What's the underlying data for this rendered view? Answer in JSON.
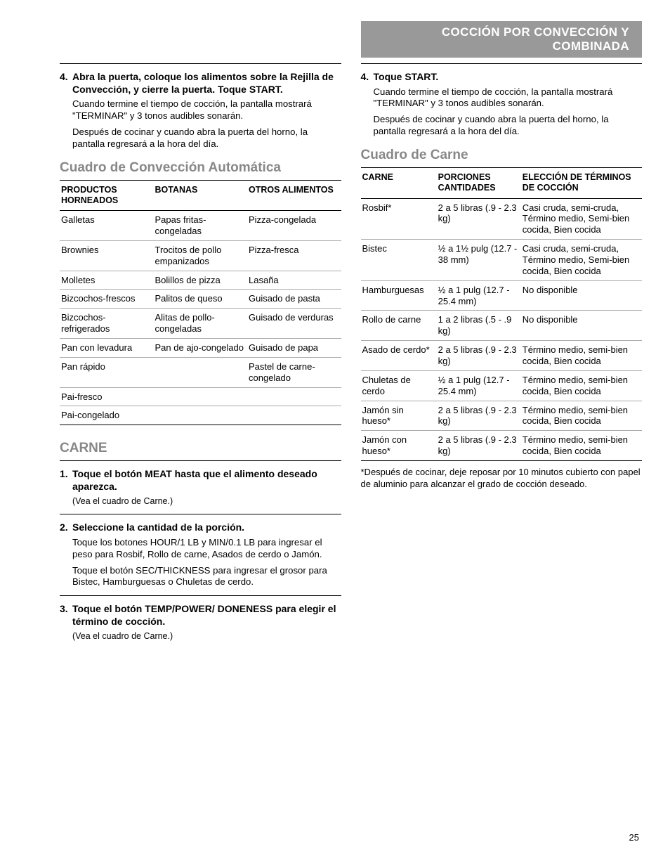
{
  "header": {
    "title": "COCCIÓN POR CONVECCIÓN Y COMBINADA"
  },
  "page_number": "25",
  "left": {
    "step4": {
      "num": "4.",
      "title": "Abra la puerta, coloque los alimentos sobre la Rejilla de Convección, y cierre la puerta. Toque START.",
      "p1": "Cuando termine el tiempo de cocción, la pantalla mostrará \"TERMINAR\" y 3 tonos audibles sonarán.",
      "p2": "Después de cocinar y cuando abra la puerta del horno, la pantalla regresará a la hora del día."
    },
    "conv_title": "Cuadro de Convección Automática",
    "conv_table": {
      "headers": [
        "PRODUCTOS HORNEADOS",
        "BOTANAS",
        "OTROS ALIMENTOS"
      ],
      "rows": [
        [
          "Galletas",
          "Papas fritas-congeladas",
          "Pizza-congelada"
        ],
        [
          "Brownies",
          "Trocitos de pollo empanizados",
          "Pizza-fresca"
        ],
        [
          "Molletes",
          "Bolillos de pizza",
          "Lasaña"
        ],
        [
          "Bizcochos-frescos",
          "Palitos de queso",
          "Guisado de pasta"
        ],
        [
          "Bizcochos-refrigerados",
          "Alitas de pollo-congeladas",
          "Guisado de verduras"
        ],
        [
          "Pan con levadura",
          "Pan de ajo-congelado",
          "Guisado de papa"
        ],
        [
          "Pan rápido",
          "",
          "Pastel de carne-congelado"
        ],
        [
          "Pai-fresco",
          "",
          ""
        ],
        [
          "Pai-congelado",
          "",
          ""
        ]
      ]
    },
    "carne_title": "CARNE",
    "carne_steps": {
      "s1": {
        "num": "1.",
        "title": "Toque el botón MEAT hasta que el alimento deseado aparezca.",
        "p1": "(Vea el cuadro de Carne.)"
      },
      "s2": {
        "num": "2.",
        "title": "Seleccione la cantidad de la porción.",
        "p1": "Toque los botones HOUR/1 LB y MIN/0.1 LB para ingresar el peso para Rosbif, Rollo de carne, Asados de cerdo o Jamón.",
        "p2": "Toque el botón SEC/THICKNESS para ingresar el grosor para Bistec, Hamburguesas o Chuletas de cerdo."
      },
      "s3": {
        "num": "3.",
        "title": "Toque el botón TEMP/POWER/ DONENESS para elegir el término de cocción.",
        "p1": "(Vea el cuadro de Carne.)"
      }
    }
  },
  "right": {
    "step4": {
      "num": "4.",
      "title": "Toque START.",
      "p1": "Cuando termine el tiempo de cocción, la pantalla mostrará \"TERMINAR\" y 3 tonos audibles sonarán.",
      "p2": "Después de cocinar y cuando abra la puerta del horno, la pantalla regresará a la hora del día."
    },
    "carne_title": "Cuadro de Carne",
    "carne_table": {
      "headers": [
        "CARNE",
        "PORCIONES CANTIDADES",
        "ELECCIÓN DE TÉRMINOS DE COCCIÓN"
      ],
      "rows": [
        [
          "Rosbif*",
          "2 a 5 libras (.9 - 2.3 kg)",
          "Casi cruda, semi-cruda, Término medio, Semi-bien cocida, Bien cocida"
        ],
        [
          "Bistec",
          "½ a 1½ pulg (12.7 - 38 mm)",
          "Casi cruda, semi-cruda, Término medio, Semi-bien cocida, Bien cocida"
        ],
        [
          "Hamburguesas",
          "½ a 1 pulg (12.7 - 25.4 mm)",
          "No disponible"
        ],
        [
          "Rollo de carne",
          "1 a 2 libras (.5 - .9 kg)",
          "No disponible"
        ],
        [
          "Asado de cerdo*",
          "2 a 5 libras (.9 - 2.3 kg)",
          "Término medio, semi-bien cocida, Bien cocida"
        ],
        [
          "Chuletas de cerdo",
          "½ a 1 pulg (12.7 - 25.4 mm)",
          "Término medio, semi-bien cocida, Bien cocida"
        ],
        [
          "Jamón sin hueso*",
          "2 a 5 libras (.9 - 2.3 kg)",
          "Término medio, semi-bien cocida, Bien cocida"
        ],
        [
          "Jamón con hueso*",
          "2 a 5 libras (.9 - 2.3 kg)",
          "Término medio, semi-bien cocida, Bien cocida"
        ]
      ]
    },
    "footnote": "*Después de cocinar, deje reposar por 10 minutos cubierto con papel de aluminio para alcanzar el grado de cocción deseado."
  }
}
